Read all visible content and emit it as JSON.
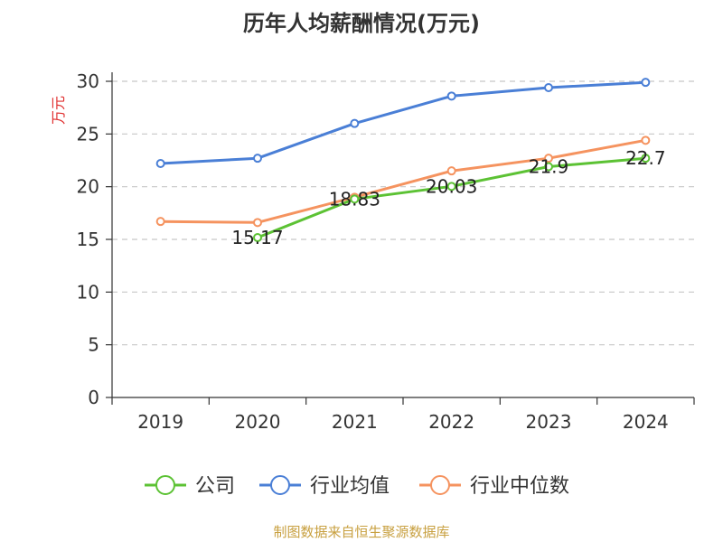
{
  "chart_data": {
    "type": "line",
    "title": "历年人均薪酬情况(万元)",
    "ylabel": "万元",
    "xlabel": "",
    "ylim": [
      0,
      30
    ],
    "yticks": [
      0,
      5,
      10,
      15,
      20,
      25,
      30
    ],
    "categories": [
      "2019",
      "2020",
      "2021",
      "2022",
      "2023",
      "2024"
    ],
    "grid": true,
    "legend_position": "bottom",
    "series": [
      {
        "name": "公司",
        "color": "#5cc234",
        "values": [
          null,
          15.17,
          18.83,
          20.03,
          21.9,
          22.7
        ],
        "labels": [
          "",
          "15.17",
          "18.83",
          "20.03",
          "21.9",
          "22.7"
        ]
      },
      {
        "name": "行业均值",
        "color": "#4a7fd6",
        "values": [
          22.2,
          22.7,
          26.0,
          28.6,
          29.4,
          29.9
        ],
        "labels": []
      },
      {
        "name": "行业中位数",
        "color": "#f5935f",
        "values": [
          16.7,
          16.6,
          19.0,
          21.5,
          22.7,
          24.4
        ],
        "labels": []
      }
    ]
  },
  "footer": {
    "source": "制图数据来自恒生聚源数据库"
  }
}
